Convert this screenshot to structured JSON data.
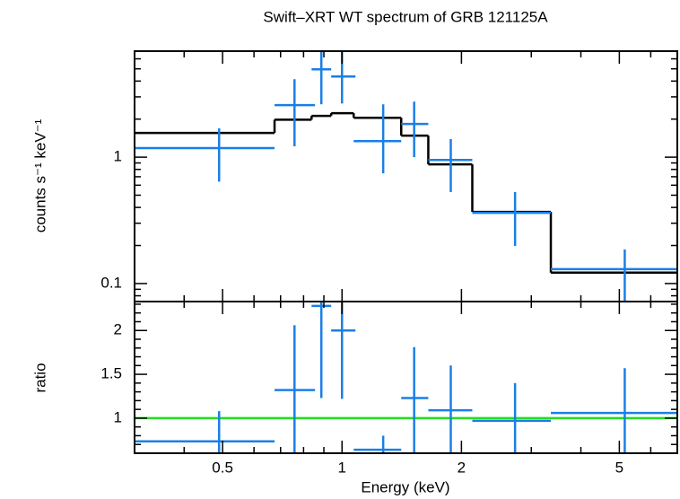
{
  "chart_data": [
    {
      "type": "errorbar",
      "title": "Swift–XRT WT spectrum of GRB 121125A",
      "ylabel": "counts s⁻¹ keV⁻¹",
      "xscale": "log",
      "yscale": "log",
      "xlim": [
        0.3,
        7
      ],
      "ylim": [
        0.072,
        6.9
      ],
      "xticks": [
        0.5,
        1,
        2,
        5
      ],
      "xminor": [
        0.3,
        0.4,
        0.6,
        0.7,
        0.8,
        0.9,
        3,
        4,
        6,
        7
      ],
      "yticks": [
        0.1,
        1
      ],
      "yminor": [
        0.08,
        0.09,
        0.2,
        0.3,
        0.4,
        0.5,
        0.6,
        0.7,
        0.8,
        0.9,
        2,
        3,
        4,
        5,
        6
      ],
      "series": [
        {
          "name": "data",
          "color": "#1a7fe6",
          "x": [
            0.49,
            0.759,
            0.887,
            1.0,
            1.27,
            1.52,
            1.88,
            2.73,
            5.16
          ],
          "x_low": [
            0.3,
            0.676,
            0.838,
            0.939,
            1.07,
            1.41,
            1.65,
            2.13,
            3.36
          ],
          "x_high": [
            0.676,
            0.855,
            0.939,
            1.081,
            1.41,
            1.65,
            2.13,
            3.36,
            7
          ],
          "values": [
            1.18,
            2.58,
            4.95,
            4.35,
            1.34,
            1.83,
            0.95,
            0.363,
            0.13
          ],
          "y_low": [
            0.64,
            1.22,
            2.62,
            2.66,
            0.745,
            1.0,
            0.53,
            0.198,
            0.072
          ],
          "y_high": [
            1.69,
            4.14,
            6.9,
            6.9,
            2.62,
            2.75,
            1.39,
            0.53,
            0.186
          ]
        }
      ],
      "model": {
        "color": "#000000",
        "bins": [
          0.3,
          0.676,
          0.838,
          0.939,
          1.07,
          1.41,
          1.65,
          2.13,
          3.36,
          7
        ],
        "values": [
          1.555,
          1.98,
          2.12,
          2.23,
          2.05,
          1.48,
          0.877,
          0.369,
          0.122
        ]
      }
    },
    {
      "type": "errorbar",
      "xlabel": "Energy (keV)",
      "ylabel": "ratio",
      "xscale": "log",
      "yscale": "linear",
      "xlim": [
        0.3,
        7
      ],
      "ylim": [
        0.6,
        2.33
      ],
      "xticks": [
        0.5,
        1,
        2,
        5
      ],
      "xminor": [
        0.3,
        0.4,
        0.6,
        0.7,
        0.8,
        0.9,
        3,
        4,
        6,
        7
      ],
      "yticks": [
        1,
        1.5,
        2
      ],
      "yminor": [
        0.7,
        0.8,
        0.9,
        1.1,
        1.2,
        1.3,
        1.4,
        1.6,
        1.7,
        1.8,
        1.9,
        2.1,
        2.2,
        2.3
      ],
      "series": [
        {
          "name": "ratio",
          "color": "#1a7fe6",
          "x": [
            0.49,
            0.759,
            0.887,
            1.0,
            1.27,
            1.52,
            1.88,
            2.73,
            5.16
          ],
          "x_low": [
            0.3,
            0.676,
            0.838,
            0.939,
            1.07,
            1.41,
            1.65,
            2.13,
            3.36
          ],
          "x_high": [
            0.676,
            0.855,
            0.939,
            1.081,
            1.41,
            1.65,
            2.13,
            3.36,
            7
          ],
          "values": [
            0.735,
            1.32,
            2.28,
            2.0,
            0.64,
            1.23,
            1.09,
            0.97,
            1.06
          ],
          "y_low": [
            0.6,
            0.6,
            1.23,
            1.22,
            0.6,
            0.6,
            0.6,
            0.6,
            0.6
          ],
          "y_high": [
            1.08,
            2.06,
            2.33,
            2.33,
            0.8,
            1.81,
            1.6,
            1.4,
            1.57
          ]
        }
      ],
      "reference_line": {
        "value": 1,
        "color": "#22dd22"
      }
    }
  ]
}
